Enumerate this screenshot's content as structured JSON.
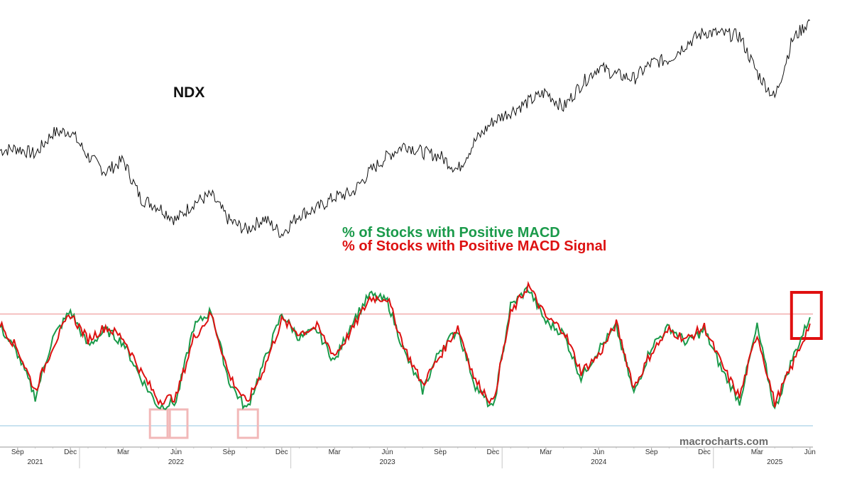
{
  "chart_data": {
    "type": "line",
    "top_panel": {
      "label": "NDX",
      "line_color": "#111111",
      "x": [
        "2021-08",
        "2021-09",
        "2021-10",
        "2021-11",
        "2021-12",
        "2022-01",
        "2022-02",
        "2022-03",
        "2022-04",
        "2022-05",
        "2022-06",
        "2022-07",
        "2022-08",
        "2022-09",
        "2022-10",
        "2022-11",
        "2022-12",
        "2023-01",
        "2023-02",
        "2023-03",
        "2023-04",
        "2023-05",
        "2023-06",
        "2023-07",
        "2023-08",
        "2023-09",
        "2023-10",
        "2023-11",
        "2023-12",
        "2024-01",
        "2024-02",
        "2024-03",
        "2024-04",
        "2024-05",
        "2024-06",
        "2024-07",
        "2024-08",
        "2024-09",
        "2024-10",
        "2024-11",
        "2024-12",
        "2025-01",
        "2025-02",
        "2025-03",
        "2025-04",
        "2025-05",
        "2025-06"
      ],
      "values": [
        15300,
        15400,
        15100,
        16200,
        16300,
        15000,
        14200,
        14800,
        12800,
        12400,
        11700,
        12600,
        13000,
        11700,
        11200,
        11800,
        11000,
        12000,
        12300,
        12900,
        13100,
        14200,
        15000,
        15600,
        15200,
        15000,
        14300,
        15800,
        16800,
        17300,
        17800,
        18300,
        17500,
        18700,
        19600,
        19200,
        19000,
        19800,
        20000,
        20800,
        21400,
        21300,
        21200,
        19300,
        18000,
        21000,
        22000
      ]
    },
    "bottom_panel": {
      "legend": [
        {
          "name": "% of Stocks with Positive MACD",
          "color": "#1a9a4a"
        },
        {
          "name": "% of Stocks with Positive MACD Signal",
          "color": "#dd1111"
        }
      ],
      "series": [
        {
          "name": "% of Stocks with Positive MACD",
          "color": "#1a9a4a",
          "values": [
            62,
            45,
            18,
            55,
            72,
            50,
            60,
            52,
            30,
            12,
            15,
            62,
            72,
            28,
            10,
            40,
            70,
            55,
            60,
            40,
            65,
            82,
            78,
            45,
            22,
            48,
            60,
            25,
            10,
            75,
            86,
            65,
            58,
            30,
            48,
            62,
            20,
            50,
            62,
            52,
            60,
            35,
            15,
            62,
            10,
            42,
            68
          ]
        },
        {
          "name": "% of Stocks with Positive MACD Signal",
          "color": "#dd1111",
          "values": [
            64,
            48,
            22,
            50,
            70,
            54,
            62,
            55,
            34,
            16,
            18,
            55,
            70,
            32,
            14,
            36,
            66,
            58,
            62,
            44,
            60,
            80,
            80,
            48,
            26,
            44,
            62,
            28,
            14,
            70,
            88,
            68,
            60,
            34,
            44,
            64,
            24,
            46,
            60,
            54,
            62,
            38,
            18,
            58,
            14,
            38,
            64
          ]
        }
      ],
      "reference_lines": [
        {
          "value": 70,
          "color": "#f0a0a0"
        },
        {
          "value": 0,
          "color": "#a8d0e8"
        }
      ],
      "highlight_color_recent": "#e01010",
      "highlight_color_past": "#f2b8b8",
      "highlight_dates_past": [
        "2022-05",
        "2022-06",
        "2022-10"
      ],
      "highlight_date_recent": "2025-06"
    },
    "x_axis": {
      "month_ticks": [
        {
          "date": "2021-09",
          "label": "Sep"
        },
        {
          "date": "2021-12",
          "label": "Dec"
        },
        {
          "date": "2022-03",
          "label": "Mar"
        },
        {
          "date": "2022-06",
          "label": "Jun"
        },
        {
          "date": "2022-09",
          "label": "Sep"
        },
        {
          "date": "2022-12",
          "label": "Dec"
        },
        {
          "date": "2023-03",
          "label": "Mar"
        },
        {
          "date": "2023-06",
          "label": "Jun"
        },
        {
          "date": "2023-09",
          "label": "Sep"
        },
        {
          "date": "2023-12",
          "label": "Dec"
        },
        {
          "date": "2024-03",
          "label": "Mar"
        },
        {
          "date": "2024-06",
          "label": "Jun"
        },
        {
          "date": "2024-09",
          "label": "Sep"
        },
        {
          "date": "2024-12",
          "label": "Dec"
        },
        {
          "date": "2025-03",
          "label": "Mar"
        },
        {
          "date": "2025-06",
          "label": "Jun"
        }
      ],
      "year_labels": [
        {
          "date": "2021-10",
          "label": "2021"
        },
        {
          "date": "2022-06",
          "label": "2022"
        },
        {
          "date": "2023-06",
          "label": "2023"
        },
        {
          "date": "2024-06",
          "label": "2024"
        },
        {
          "date": "2025-04",
          "label": "2025"
        }
      ],
      "year_boundaries": [
        "2022-01",
        "2023-01",
        "2024-01",
        "2025-01"
      ]
    },
    "grid": false,
    "watermark": "macrocharts.com"
  }
}
